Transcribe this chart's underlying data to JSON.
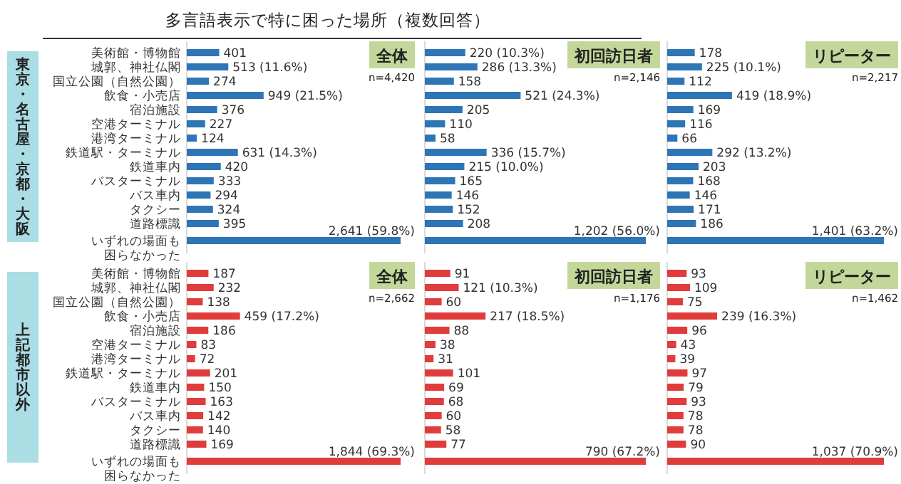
{
  "chart_data": [
    {
      "type": "bar",
      "orientation": "horizontal",
      "title": "多言語表示で特に困った場所（複数回答）",
      "subtitle": "全体",
      "annotations": [
        "n=4,420"
      ],
      "ylabel": "東京・名古屋・京都・大阪",
      "color": "#2e75b6",
      "categories": [
        "美術館・博物館",
        "城郭、神社仏閣",
        "国立公園（自然公園）",
        "飲食・小売店",
        "宿泊施設",
        "空港ターミナル",
        "港湾ターミナル",
        "鉄道駅・ターミナル",
        "鉄道車内",
        "バスターミナル",
        "バス車内",
        "タクシー",
        "道路標識",
        "いずれの場面も困らなかった"
      ],
      "values": [
        401,
        513,
        274,
        949,
        376,
        227,
        124,
        631,
        420,
        333,
        294,
        324,
        395,
        2641
      ],
      "value_labels": [
        "401",
        "513 (11.6%)",
        "274",
        "949 (21.5%)",
        "376",
        "227",
        "124",
        "631 (14.3%)",
        "420",
        "333",
        "294",
        "324",
        "395",
        "2,641 (59.8%)"
      ]
    },
    {
      "type": "bar",
      "orientation": "horizontal",
      "subtitle": "初回訪日者",
      "annotations": [
        "n=2,146"
      ],
      "color": "#2e75b6",
      "categories": [
        null,
        null,
        null,
        null,
        null,
        null,
        null,
        null,
        null,
        null,
        null,
        null,
        null,
        null
      ],
      "values": [
        220,
        286,
        158,
        521,
        205,
        110,
        58,
        336,
        215,
        165,
        146,
        152,
        208,
        1202
      ],
      "value_labels": [
        "220 (10.3%)",
        "286 (13.3%)",
        "158",
        "521 (24.3%)",
        "205",
        "110",
        "58",
        "336 (15.7%)",
        "215 (10.0%)",
        "165",
        "146",
        "152",
        "208",
        "1,202 (56.0%)"
      ]
    },
    {
      "type": "bar",
      "orientation": "horizontal",
      "subtitle": "リピーター",
      "annotations": [
        "n=2,217"
      ],
      "color": "#2e75b6",
      "categories": [
        null,
        null,
        null,
        null,
        null,
        null,
        null,
        null,
        null,
        null,
        null,
        null,
        null,
        null
      ],
      "values": [
        178,
        225,
        112,
        419,
        169,
        116,
        66,
        292,
        203,
        168,
        146,
        171,
        186,
        1401
      ],
      "value_labels": [
        "178",
        "225 (10.1%)",
        "112",
        "419 (18.9%)",
        "169",
        "116",
        "66",
        "292 (13.2%)",
        "203",
        "168",
        "146",
        "171",
        "186",
        "1,401 (63.2%)"
      ]
    },
    {
      "type": "bar",
      "orientation": "horizontal",
      "subtitle": "全体",
      "annotations": [
        "n=2,662"
      ],
      "ylabel": "上記都市以外",
      "color": "#e03c3c",
      "categories": [
        "美術館・博物館",
        "城郭、神社仏閣",
        "国立公園（自然公園）",
        "飲食・小売店",
        "宿泊施設",
        "空港ターミナル",
        "港湾ターミナル",
        "鉄道駅・ターミナル",
        "鉄道車内",
        "バスターミナル",
        "バス車内",
        "タクシー",
        "道路標識",
        "いずれの場面も困らなかった"
      ],
      "values": [
        187,
        232,
        138,
        459,
        186,
        83,
        72,
        201,
        150,
        163,
        142,
        140,
        169,
        1844
      ],
      "value_labels": [
        "187",
        "232",
        "138",
        "459 (17.2%)",
        "186",
        "83",
        "72",
        "201",
        "150",
        "163",
        "142",
        "140",
        "169",
        "1,844 (69.3%)"
      ]
    },
    {
      "type": "bar",
      "orientation": "horizontal",
      "subtitle": "初回訪日者",
      "annotations": [
        "n=1,176"
      ],
      "color": "#e03c3c",
      "categories": [
        null,
        null,
        null,
        null,
        null,
        null,
        null,
        null,
        null,
        null,
        null,
        null,
        null,
        null
      ],
      "values": [
        91,
        121,
        60,
        217,
        88,
        38,
        31,
        101,
        69,
        68,
        60,
        58,
        77,
        790
      ],
      "value_labels": [
        "91",
        "121 (10.3%)",
        "60",
        "217 (18.5%)",
        "88",
        "38",
        "31",
        "101",
        "69",
        "68",
        "60",
        "58",
        "77",
        "790 (67.2%)"
      ]
    },
    {
      "type": "bar",
      "orientation": "horizontal",
      "subtitle": "リピーター",
      "annotations": [
        "n=1,462"
      ],
      "color": "#e03c3c",
      "categories": [
        null,
        null,
        null,
        null,
        null,
        null,
        null,
        null,
        null,
        null,
        null,
        null,
        null,
        null
      ],
      "values": [
        93,
        109,
        75,
        239,
        96,
        43,
        39,
        97,
        79,
        93,
        78,
        78,
        90,
        1037
      ],
      "value_labels": [
        "93",
        "109",
        "75",
        "239 (16.3%)",
        "96",
        "43",
        "39",
        "97",
        "79",
        "93",
        "78",
        "78",
        "90",
        "1,037 (70.9%)"
      ]
    }
  ]
}
